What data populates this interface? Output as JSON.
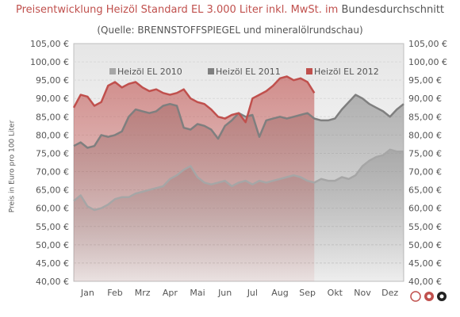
{
  "title": {
    "part1": "Preisentwicklung Heizöl Standard EL 3.000 Liter inkl. MwSt. im",
    "part2": "Bundesdurchschnitt"
  },
  "subtitle": "(Quelle: BRENNSTOFFSPIEGEL und mineralölrundschau)",
  "logo_text": "©ceo",
  "colors": {
    "title_red": "#c0504d",
    "series_2010": "#a6a6a6",
    "series_2011": "#7f7f7f",
    "series_2012": "#c0504d"
  },
  "chart_data": {
    "type": "area",
    "ylabel": "Preis in Euro pro 100 Liter",
    "ylim": [
      40,
      105
    ],
    "y_ticks": [
      "40,00 €",
      "45,00 €",
      "50,00 €",
      "55,00 €",
      "60,00 €",
      "65,00 €",
      "70,00 €",
      "75,00 €",
      "80,00 €",
      "85,00 €",
      "90,00 €",
      "95,00 €",
      "100,00 €",
      "105,00 €"
    ],
    "categories": [
      "Jan",
      "Feb",
      "Mrz",
      "Apr",
      "Mai",
      "Jun",
      "Jul",
      "Aug",
      "Sep",
      "Okt",
      "Nov",
      "Dez"
    ],
    "grid": true,
    "legend_position": "top",
    "series": [
      {
        "name": "Heizöl EL 2010",
        "color": "#a6a6a6",
        "x": [
          0,
          0.25,
          0.5,
          0.75,
          1.0,
          1.25,
          1.5,
          1.75,
          2.0,
          2.25,
          2.5,
          2.75,
          3.0,
          3.25,
          3.5,
          3.75,
          4.0,
          4.25,
          4.5,
          4.75,
          5.0,
          5.25,
          5.5,
          5.75,
          6.0,
          6.25,
          6.5,
          6.75,
          7.0,
          7.25,
          7.5,
          7.75,
          8.0,
          8.25,
          8.5,
          8.75,
          9.0,
          9.25,
          9.5,
          9.75,
          10.0,
          10.25,
          10.5,
          10.75,
          11.0,
          11.25,
          11.5,
          11.75,
          12.0
        ],
        "values": [
          62.0,
          63.5,
          60.5,
          59.5,
          60.0,
          61.0,
          62.5,
          63.0,
          63.0,
          64.0,
          64.5,
          65.0,
          65.5,
          66.0,
          68.0,
          69.0,
          70.5,
          71.5,
          68.5,
          67.0,
          66.5,
          67.0,
          67.5,
          66.0,
          67.0,
          67.5,
          66.5,
          67.5,
          67.0,
          67.5,
          68.0,
          68.5,
          69.0,
          68.5,
          67.5,
          67.0,
          68.0,
          67.5,
          67.5,
          68.5,
          68.0,
          69.0,
          71.5,
          73.0,
          74.0,
          74.5,
          76.0,
          75.5,
          75.5
        ]
      },
      {
        "name": "Heizöl EL 2011",
        "color": "#7f7f7f",
        "x": [
          0,
          0.25,
          0.5,
          0.75,
          1.0,
          1.25,
          1.5,
          1.75,
          2.0,
          2.25,
          2.5,
          2.75,
          3.0,
          3.25,
          3.5,
          3.75,
          4.0,
          4.25,
          4.5,
          4.75,
          5.0,
          5.25,
          5.5,
          5.75,
          6.0,
          6.25,
          6.5,
          6.75,
          7.0,
          7.25,
          7.5,
          7.75,
          8.0,
          8.25,
          8.5,
          8.75,
          9.0,
          9.25,
          9.5,
          9.75,
          10.0,
          10.25,
          10.5,
          10.75,
          11.0,
          11.25,
          11.5,
          11.75,
          12.0
        ],
        "values": [
          77.0,
          78.0,
          76.5,
          77.0,
          80.0,
          79.5,
          80.0,
          81.0,
          85.0,
          87.0,
          86.5,
          86.0,
          86.5,
          88.0,
          88.5,
          88.0,
          82.0,
          81.5,
          83.0,
          82.5,
          81.5,
          79.0,
          82.5,
          84.0,
          86.0,
          85.0,
          85.5,
          79.5,
          84.0,
          84.5,
          85.0,
          84.5,
          85.0,
          85.5,
          86.0,
          84.5,
          84.0,
          84.0,
          84.5,
          87.0,
          89.0,
          91.0,
          90.0,
          88.5,
          87.5,
          86.5,
          85.0,
          87.0,
          88.5
        ]
      },
      {
        "name": "Heizöl EL 2012",
        "color": "#c0504d",
        "x": [
          0,
          0.25,
          0.5,
          0.75,
          1.0,
          1.25,
          1.5,
          1.75,
          2.0,
          2.25,
          2.5,
          2.75,
          3.0,
          3.25,
          3.5,
          3.75,
          4.0,
          4.25,
          4.5,
          4.75,
          5.0,
          5.25,
          5.5,
          5.75,
          6.0,
          6.25,
          6.5,
          6.75,
          7.0,
          7.25,
          7.5,
          7.75,
          8.0,
          8.25,
          8.5,
          8.75
        ],
        "values": [
          87.5,
          91.0,
          90.5,
          88.0,
          89.0,
          93.5,
          94.5,
          93.0,
          94.0,
          94.5,
          93.0,
          92.0,
          92.5,
          91.5,
          91.0,
          91.5,
          92.5,
          90.0,
          89.0,
          88.5,
          87.0,
          85.0,
          84.5,
          85.5,
          86.0,
          83.5,
          90.0,
          91.0,
          92.0,
          93.5,
          95.5,
          96.0,
          95.0,
          95.5,
          94.5,
          91.5
        ]
      }
    ]
  }
}
